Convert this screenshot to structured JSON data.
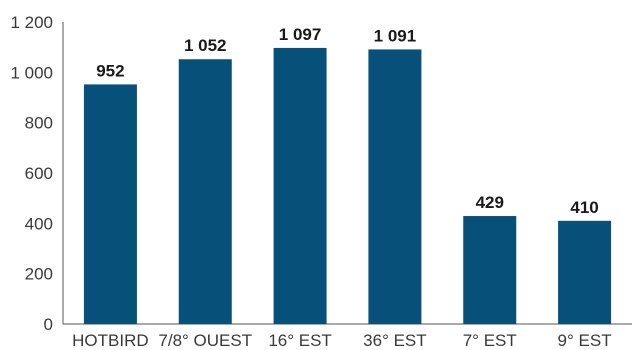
{
  "chart_data": {
    "type": "bar",
    "title": "",
    "xlabel": "",
    "ylabel": "",
    "categories": [
      "HOTBIRD",
      "7/8° OUEST",
      "16° EST",
      "36° EST",
      "7° EST",
      "9° EST"
    ],
    "values": [
      952,
      1052,
      1097,
      1091,
      429,
      410
    ],
    "value_labels": [
      "952",
      "1 052",
      "1 097",
      "1 091",
      "429",
      "410"
    ],
    "ylim": [
      0,
      1200
    ],
    "y_ticks": [
      0,
      200,
      400,
      600,
      800,
      1000,
      1200
    ],
    "y_tick_labels": [
      "0",
      "200",
      "400",
      "600",
      "800",
      "1 000",
      "1 200"
    ],
    "grid": false,
    "legend": "none",
    "bar_color": "#07507a"
  }
}
